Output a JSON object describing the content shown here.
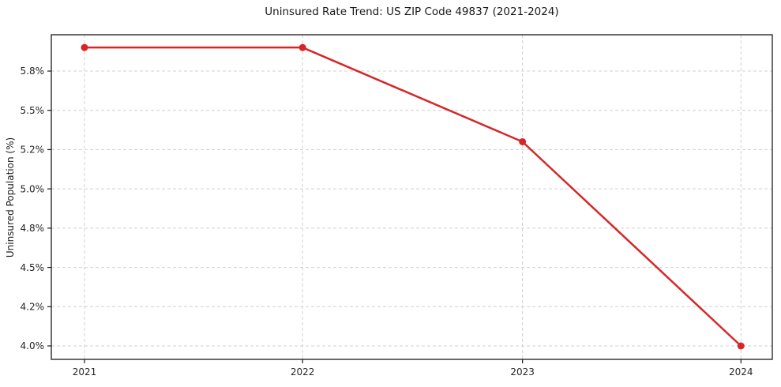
{
  "chart_data": {
    "type": "line",
    "title": "Uninsured Rate Trend: US ZIP Code 49837 (2021-2024)",
    "xlabel": "",
    "ylabel": "Uninsured Population (%)",
    "categories": [
      "2021",
      "2022",
      "2023",
      "2024"
    ],
    "values": [
      5.92,
      5.92,
      5.26,
      4.0
    ],
    "y_tick_labels": [
      "4.0%",
      "4.2%",
      "4.5%",
      "4.8%",
      "5.0%",
      "5.2%",
      "5.5%",
      "5.8%"
    ],
    "y_tick_values": [
      4.0,
      4.2,
      4.5,
      4.8,
      5.0,
      5.2,
      5.5,
      5.8
    ],
    "grid": true,
    "legend": "none",
    "line_color": "#d62728",
    "marker": "circle",
    "grid_color": "#d0d0d0",
    "axis_color": "#1a1a1a",
    "text_color": "#262626",
    "background_color": "#ffffff"
  }
}
